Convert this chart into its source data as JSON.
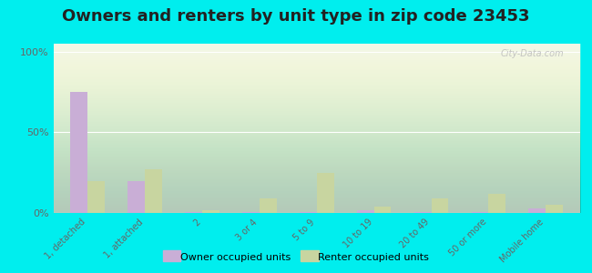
{
  "title": "Owners and renters by unit type in zip code 23453",
  "categories": [
    "1, detached",
    "1, attached",
    "2",
    "3 or 4",
    "5 to 9",
    "10 to 19",
    "20 to 49",
    "50 or more",
    "Mobile home"
  ],
  "owner_values": [
    75,
    20,
    0.5,
    0.5,
    0.5,
    1.5,
    0.5,
    0.5,
    3
  ],
  "renter_values": [
    20,
    27,
    1.5,
    9,
    25,
    4,
    9,
    12,
    5
  ],
  "owner_color": "#c9aed6",
  "renter_color": "#c8d5a0",
  "background_color": "#00eeee",
  "yticks": [
    0,
    50,
    100
  ],
  "ylim": [
    0,
    105
  ],
  "ylabel_labels": [
    "0%",
    "50%",
    "100%"
  ],
  "watermark": "City-Data.com",
  "legend_owner": "Owner occupied units",
  "legend_renter": "Renter occupied units",
  "title_fontsize": 13,
  "bar_width": 0.3
}
